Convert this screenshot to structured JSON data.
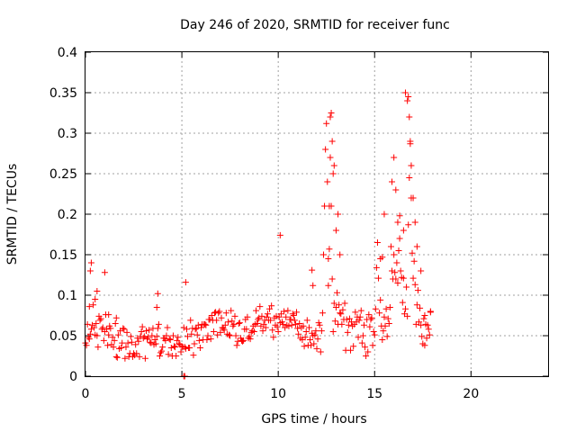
{
  "chart_data": {
    "type": "scatter",
    "title": "Day 246 of 2020, SRMTID for receiver func",
    "xlabel": "GPS time / hours",
    "ylabel": "SRMTID / TECUs",
    "xlim": [
      0,
      24
    ],
    "ylim": [
      0,
      0.4
    ],
    "xticks": [
      0,
      5,
      10,
      15,
      20
    ],
    "yticks": [
      0,
      0.05,
      0.1,
      0.15,
      0.2,
      0.25,
      0.3,
      0.35,
      0.4
    ],
    "xtick_labels": [
      "0",
      "5",
      "10",
      "15",
      "20"
    ],
    "ytick_labels": [
      "0",
      "0.05",
      "0.1",
      "0.15",
      "0.2",
      "0.25",
      "0.3",
      "0.35",
      "0.4"
    ],
    "grid": true,
    "marker": "+",
    "color": "#ff0000",
    "series": [
      {
        "name": "SRMTID",
        "x": [
          0.0,
          0.05,
          0.1,
          0.15,
          0.2,
          0.25,
          0.3,
          0.35,
          0.4,
          0.45,
          0.5,
          0.55,
          0.6,
          0.65,
          0.7,
          0.75,
          0.8,
          0.85,
          0.9,
          0.95,
          1.0,
          1.05,
          1.1,
          1.15,
          1.2,
          1.25,
          1.3,
          1.35,
          1.4,
          1.45,
          1.5,
          1.55,
          1.6,
          1.65,
          1.7,
          1.75,
          1.8,
          1.85,
          1.9,
          1.95,
          2.0,
          2.05,
          2.1,
          2.15,
          2.2,
          2.25,
          2.3,
          2.35,
          2.4,
          2.45,
          2.5,
          2.55,
          2.6,
          2.65,
          2.7,
          2.75,
          2.8,
          2.85,
          2.9,
          2.95,
          3.0,
          3.05,
          3.1,
          3.15,
          3.2,
          3.25,
          3.3,
          3.35,
          3.4,
          3.45,
          3.5,
          3.55,
          3.6,
          3.65,
          3.7,
          3.75,
          3.8,
          3.85,
          3.9,
          3.95,
          4.0,
          4.05,
          4.1,
          4.15,
          4.2,
          4.25,
          4.3,
          4.35,
          4.4,
          4.45,
          4.5,
          4.55,
          4.6,
          4.65,
          4.7,
          4.75,
          4.8,
          4.85,
          4.9,
          4.95,
          5.0,
          5.05,
          5.1,
          5.15,
          5.2,
          5.25,
          5.3,
          5.35,
          5.4,
          5.45,
          5.5,
          5.55,
          5.6,
          5.65,
          5.7,
          5.75,
          5.8,
          5.85,
          5.9,
          5.95,
          6.0,
          6.05,
          6.1,
          6.15,
          6.2,
          6.25,
          6.3,
          6.35,
          6.4,
          6.45,
          6.5,
          6.55,
          6.6,
          6.65,
          6.7,
          6.75,
          6.8,
          6.85,
          6.9,
          6.95,
          7.0,
          7.05,
          7.1,
          7.15,
          7.2,
          7.25,
          7.3,
          7.35,
          7.4,
          7.45,
          7.5,
          7.55,
          7.6,
          7.65,
          7.7,
          7.75,
          7.8,
          7.85,
          7.9,
          7.95,
          8.0,
          8.05,
          8.1,
          8.15,
          8.2,
          8.25,
          8.3,
          8.35,
          8.4,
          8.45,
          8.5,
          8.55,
          8.6,
          8.65,
          8.7,
          8.75,
          8.8,
          8.85,
          8.9,
          8.95,
          9.0,
          9.05,
          9.1,
          9.15,
          9.2,
          9.25,
          9.3,
          9.35,
          9.4,
          9.45,
          9.5,
          9.55,
          9.6,
          9.65,
          9.7,
          9.75,
          9.8,
          9.85,
          9.9,
          9.95,
          10.0,
          10.05,
          10.1,
          10.15,
          10.2,
          10.25,
          10.3,
          10.35,
          10.4,
          10.45,
          10.5,
          10.55,
          10.6,
          10.65,
          10.7,
          10.75,
          10.8,
          10.85,
          10.9,
          10.95,
          11.0,
          11.05,
          11.1,
          11.15,
          11.2,
          11.25,
          11.3,
          11.35,
          11.4,
          11.45,
          11.5,
          11.55,
          11.6,
          11.65,
          11.7,
          11.75,
          11.8,
          11.85,
          11.9,
          11.95,
          12.0,
          12.05,
          12.1,
          12.15,
          12.2,
          12.25,
          12.3,
          12.35,
          12.4,
          12.45,
          12.5,
          12.55,
          12.6,
          12.65,
          12.7,
          12.75,
          12.8,
          12.85,
          12.9,
          12.95,
          13.0,
          13.05,
          13.1,
          13.15,
          13.2,
          13.25,
          13.3,
          13.35,
          13.4,
          13.45,
          13.5,
          13.55,
          13.6,
          13.65,
          13.7,
          13.75,
          13.8,
          13.85,
          13.9,
          13.95,
          14.0,
          14.05,
          14.1,
          14.15,
          14.2,
          14.25,
          14.3,
          14.35,
          14.4,
          14.45,
          14.5,
          14.55,
          14.6,
          14.65,
          14.7,
          14.75,
          14.8,
          14.85,
          14.9,
          14.95,
          15.0,
          15.05,
          15.1,
          15.15,
          15.2,
          15.25,
          15.3,
          15.35,
          15.4,
          15.45,
          15.5,
          15.55,
          15.6,
          15.65,
          15.7,
          15.75,
          15.8,
          15.85,
          15.9,
          15.95,
          16.0,
          16.05,
          16.1,
          16.15,
          16.2,
          16.25,
          16.3,
          16.35,
          16.4,
          16.45,
          16.5,
          16.55,
          16.6,
          16.65,
          16.7,
          16.75,
          16.8,
          16.85,
          16.9,
          16.95,
          17.0,
          17.05,
          17.1,
          17.15,
          17.2,
          17.25,
          17.3,
          17.35,
          17.4,
          17.45,
          17.5,
          17.55,
          17.6,
          17.65,
          17.7,
          17.75,
          17.8,
          17.85,
          17.9,
          0.2,
          0.25,
          0.3,
          0.5,
          0.6,
          1.0,
          1.2,
          1.6,
          3.7,
          3.75,
          5.2,
          10.1,
          11.75,
          11.8,
          12.6,
          12.65,
          12.7,
          12.75,
          12.8,
          12.85,
          12.9,
          13.0,
          13.1,
          13.2,
          15.3,
          15.4,
          15.5,
          15.9,
          16.0,
          16.1,
          16.2,
          16.3,
          16.5,
          16.6,
          16.7,
          16.75,
          16.8,
          16.85,
          16.9,
          17.0,
          17.1,
          17.2,
          17.4,
          17.6,
          17.9,
          5.1,
          5.15
        ],
        "y": [
          0.041,
          0.038,
          0.064,
          0.048,
          0.046,
          0.052,
          0.058,
          0.063,
          0.088,
          0.06,
          0.051,
          0.065,
          0.05,
          0.036,
          0.074,
          0.069,
          0.071,
          0.058,
          0.06,
          0.044,
          0.055,
          0.076,
          0.058,
          0.038,
          0.051,
          0.062,
          0.059,
          0.039,
          0.048,
          0.036,
          0.044,
          0.065,
          0.024,
          0.023,
          0.051,
          0.034,
          0.056,
          0.035,
          0.041,
          0.059,
          0.058,
          0.022,
          0.036,
          0.054,
          0.041,
          0.024,
          0.028,
          0.049,
          0.042,
          0.024,
          0.028,
          0.026,
          0.039,
          0.028,
          0.047,
          0.043,
          0.024,
          0.049,
          0.055,
          0.061,
          0.047,
          0.049,
          0.022,
          0.056,
          0.046,
          0.048,
          0.057,
          0.042,
          0.041,
          0.05,
          0.059,
          0.039,
          0.045,
          0.04,
          0.049,
          0.059,
          0.064,
          0.025,
          0.029,
          0.031,
          0.036,
          0.047,
          0.047,
          0.044,
          0.05,
          0.06,
          0.027,
          0.046,
          0.045,
          0.035,
          0.025,
          0.05,
          0.037,
          0.036,
          0.025,
          0.044,
          0.048,
          0.04,
          0.039,
          0.03,
          0.037,
          0.036,
          0.06,
          0.036,
          0.034,
          0.058,
          0.049,
          0.035,
          0.035,
          0.069,
          0.052,
          0.059,
          0.026,
          0.04,
          0.058,
          0.059,
          0.051,
          0.063,
          0.044,
          0.035,
          0.06,
          0.064,
          0.045,
          0.064,
          0.064,
          0.063,
          0.045,
          0.05,
          0.07,
          0.07,
          0.046,
          0.075,
          0.069,
          0.055,
          0.078,
          0.079,
          0.069,
          0.051,
          0.078,
          0.08,
          0.054,
          0.072,
          0.06,
          0.059,
          0.057,
          0.063,
          0.078,
          0.052,
          0.067,
          0.051,
          0.05,
          0.081,
          0.068,
          0.062,
          0.064,
          0.074,
          0.05,
          0.038,
          0.043,
          0.065,
          0.066,
          0.047,
          0.044,
          0.043,
          0.044,
          0.058,
          0.07,
          0.058,
          0.073,
          0.047,
          0.049,
          0.046,
          0.054,
          0.056,
          0.062,
          0.055,
          0.064,
          0.081,
          0.065,
          0.07,
          0.072,
          0.086,
          0.062,
          0.074,
          0.056,
          0.064,
          0.069,
          0.06,
          0.073,
          0.077,
          0.069,
          0.083,
          0.069,
          0.087,
          0.057,
          0.048,
          0.072,
          0.063,
          0.074,
          0.061,
          0.055,
          0.073,
          0.066,
          0.077,
          0.067,
          0.064,
          0.08,
          0.06,
          0.073,
          0.063,
          0.081,
          0.062,
          0.07,
          0.07,
          0.063,
          0.077,
          0.075,
          0.069,
          0.064,
          0.079,
          0.059,
          0.052,
          0.065,
          0.047,
          0.06,
          0.045,
          0.062,
          0.037,
          0.048,
          0.055,
          0.069,
          0.038,
          0.06,
          0.045,
          0.038,
          0.053,
          0.05,
          0.04,
          0.051,
          0.056,
          0.034,
          0.046,
          0.066,
          0.063,
          0.03,
          0.056,
          0.078,
          0.15,
          0.21,
          0.28,
          0.312,
          0.24,
          0.145,
          0.21,
          0.27,
          0.21,
          0.12,
          0.055,
          0.09,
          0.068,
          0.085,
          0.103,
          0.064,
          0.088,
          0.078,
          0.077,
          0.064,
          0.082,
          0.07,
          0.09,
          0.032,
          0.07,
          0.054,
          0.063,
          0.071,
          0.032,
          0.067,
          0.062,
          0.037,
          0.064,
          0.079,
          0.067,
          0.073,
          0.048,
          0.069,
          0.073,
          0.081,
          0.041,
          0.05,
          0.063,
          0.036,
          0.025,
          0.07,
          0.03,
          0.076,
          0.061,
          0.07,
          0.072,
          0.038,
          0.055,
          0.051,
          0.083,
          0.134,
          0.165,
          0.121,
          0.078,
          0.094,
          0.062,
          0.045,
          0.056,
          0.073,
          0.062,
          0.083,
          0.049,
          0.071,
          0.065,
          0.085,
          0.16,
          0.13,
          0.12,
          0.15,
          0.128,
          0.12,
          0.14,
          0.115,
          0.155,
          0.198,
          0.13,
          0.122,
          0.091,
          0.121,
          0.077,
          0.083,
          0.11,
          0.074,
          0.187,
          0.245,
          0.287,
          0.22,
          0.152,
          0.121,
          0.142,
          0.113,
          0.064,
          0.088,
          0.106,
          0.067,
          0.084,
          0.063,
          0.049,
          0.04,
          0.071,
          0.038,
          0.064,
          0.047,
          0.063,
          0.058,
          0.051,
          0.079,
          0.086,
          0.13,
          0.14,
          0.095,
          0.105,
          0.128,
          0.076,
          0.072,
          0.085,
          0.102,
          0.116,
          0.174,
          0.131,
          0.112,
          0.112,
          0.157,
          0.32,
          0.325,
          0.29,
          0.25,
          0.26,
          0.18,
          0.2,
          0.15,
          0.145,
          0.147,
          0.2,
          0.24,
          0.27,
          0.23,
          0.19,
          0.17,
          0.18,
          0.35,
          0.34,
          0.345,
          0.32,
          0.29,
          0.26,
          0.22,
          0.19,
          0.16,
          0.13,
          0.075,
          0.08,
          0.0,
          0.0
        ],
        "note": "approximate values estimated from the plotted points"
      }
    ]
  }
}
